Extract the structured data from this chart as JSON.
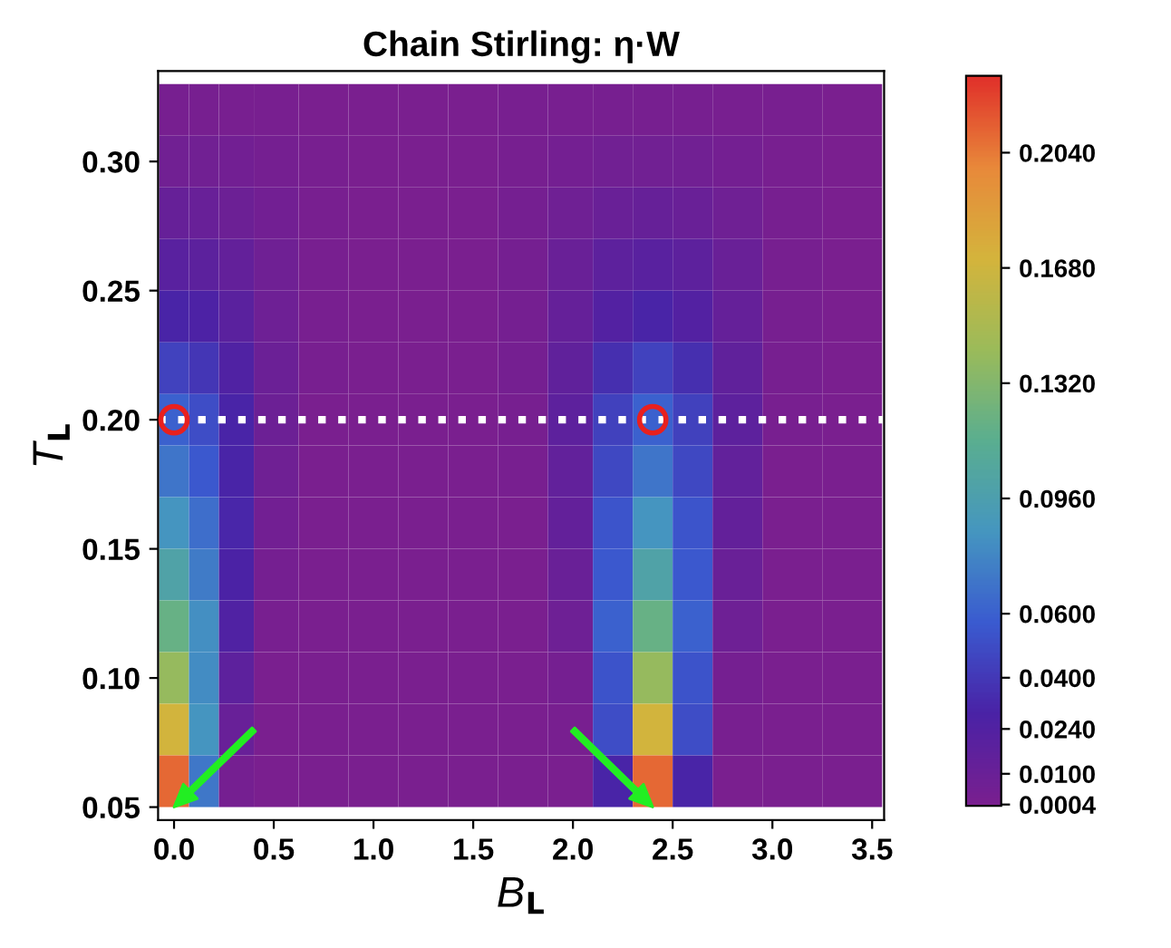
{
  "chart_data": {
    "type": "heatmap",
    "title": "Chain Stirling: η·W",
    "xlabel": "B$_{L}$",
    "ylabel": "T$_{L}$",
    "x": [
      0.0,
      0.15,
      0.3,
      0.5,
      0.75,
      1.0,
      1.25,
      1.5,
      1.75,
      2.0,
      2.2,
      2.4,
      2.6,
      2.8,
      3.1,
      3.4
    ],
    "y": [
      0.32,
      0.3,
      0.28,
      0.26,
      0.24,
      0.22,
      0.2,
      0.18,
      0.16,
      0.14,
      0.12,
      0.1,
      0.08,
      0.06
    ],
    "cells": [
      [
        0.002,
        0.0019,
        0.0017,
        0.0013,
        0.0008,
        0.0004,
        0.0003,
        0.0006,
        0.001,
        0.0015,
        0.0018,
        0.002,
        0.0018,
        0.0015,
        0.0009,
        0.0004
      ],
      [
        0.006,
        0.0056,
        0.0047,
        0.003,
        0.0013,
        0.0004,
        0.0002,
        0.0006,
        0.0019,
        0.0038,
        0.0054,
        0.006,
        0.0054,
        0.0038,
        0.0016,
        0.0004
      ],
      [
        0.012,
        0.011,
        0.0088,
        0.0052,
        0.0017,
        0.0004,
        0.0001,
        0.0008,
        0.0029,
        0.007,
        0.01,
        0.012,
        0.01,
        0.007,
        0.0023,
        0.0004
      ],
      [
        0.02,
        0.018,
        0.014,
        0.0068,
        0.0017,
        0.0003,
        0.0001,
        0.0006,
        0.0032,
        0.01,
        0.017,
        0.02,
        0.017,
        0.01,
        0.0024,
        0.0003
      ],
      [
        0.03,
        0.027,
        0.019,
        0.0078,
        0.0015,
        0.0001,
        0,
        0.0004,
        0.003,
        0.013,
        0.024,
        0.03,
        0.024,
        0.013,
        0.0022,
        0.0001
      ],
      [
        0.045,
        0.039,
        0.025,
        0.009,
        0.0013,
        0.0001,
        0,
        0.0003,
        0.0031,
        0.016,
        0.035,
        0.045,
        0.035,
        0.016,
        0.002,
        0.0001
      ],
      [
        0.06,
        0.05,
        0.03,
        0.0087,
        0.0008,
        0,
        0,
        0.0001,
        0.0023,
        0.017,
        0.044,
        0.06,
        0.044,
        0.017,
        0.0014,
        0
      ],
      [
        0.07,
        0.056,
        0.03,
        0.0065,
        0.0003,
        0,
        0,
        0,
        0.0013,
        0.015,
        0.048,
        0.07,
        0.048,
        0.015,
        0.0007,
        0
      ],
      [
        0.085,
        0.066,
        0.031,
        0.0053,
        0.0002,
        0,
        0,
        0,
        0.0008,
        0.014,
        0.054,
        0.085,
        0.054,
        0.014,
        0.0004,
        0
      ],
      [
        0.1,
        0.073,
        0.028,
        0.0028,
        0,
        0,
        0,
        0,
        0.0002,
        0.01,
        0.056,
        0.1,
        0.056,
        0.01,
        0.0001,
        0
      ],
      [
        0.12,
        0.082,
        0.025,
        0.0016,
        0,
        0,
        0,
        0,
        0.0001,
        0.0075,
        0.06,
        0.12,
        0.06,
        0.0075,
        0,
        0
      ],
      [
        0.14,
        0.081,
        0.017,
        0.0004,
        0,
        0,
        0,
        0,
        0,
        0.003,
        0.053,
        0.14,
        0.053,
        0.003,
        0,
        0
      ],
      [
        0.17,
        0.085,
        0.011,
        0.0001,
        0,
        0,
        0,
        0,
        0,
        0.0012,
        0.05,
        0.17,
        0.05,
        0.0012,
        0,
        0
      ],
      [
        0.21,
        0.071,
        0.003,
        0,
        0,
        0,
        0,
        0,
        0,
        0.0001,
        0.03,
        0.21,
        0.03,
        0.0001,
        0,
        0
      ]
    ],
    "colors": [
      "#7a1f8f",
      "#4a22a6",
      "#3a5bd0",
      "#4596c0",
      "#5aae90",
      "#9bbb5a",
      "#d4b43c",
      "#e8893a",
      "#e0302a"
    ],
    "clim": [
      0,
      0.228
    ],
    "cticks": [
      {
        "value": 0.0004,
        "label": "0.0004"
      },
      {
        "value": 0.01,
        "label": "0.0100"
      },
      {
        "value": 0.024,
        "label": "0.0240"
      },
      {
        "value": 0.04,
        "label": "0.0400"
      },
      {
        "value": 0.06,
        "label": "0.0600"
      },
      {
        "value": 0.096,
        "label": "0.0960"
      },
      {
        "value": 0.132,
        "label": "0.1320"
      },
      {
        "value": 0.168,
        "label": "0.1680"
      },
      {
        "value": 0.204,
        "label": "0.2040"
      }
    ],
    "xlim": [
      -0.08,
      3.56
    ],
    "ylim": [
      0.045,
      0.335
    ],
    "xticks": [
      {
        "value": 0,
        "label": "0.0"
      },
      0.5,
      {
        "value": 1,
        "label": "1.0"
      },
      1.5,
      {
        "value": 2,
        "label": "2.0"
      },
      2.5,
      {
        "value": 3,
        "label": "3.0"
      },
      3.5
    ],
    "yticks": [
      0.05,
      {
        "value": 0.1,
        "label": "0.10"
      },
      0.15,
      {
        "value": 0.2,
        "label": "0.20"
      },
      0.25,
      {
        "value": 0.3,
        "label": "0.30"
      }
    ],
    "ref_lines": [
      {
        "axis": "y",
        "value": 0.2,
        "color": "#ffffff",
        "line_style": "dotted"
      }
    ],
    "series": [
      {
        "type": "scatter",
        "x": [
          0.0,
          2.4
        ],
        "values": [
          0.2,
          0.2
        ],
        "color": "#e8201e"
      }
    ],
    "marker": "circle",
    "grid": false,
    "legend": false
  }
}
